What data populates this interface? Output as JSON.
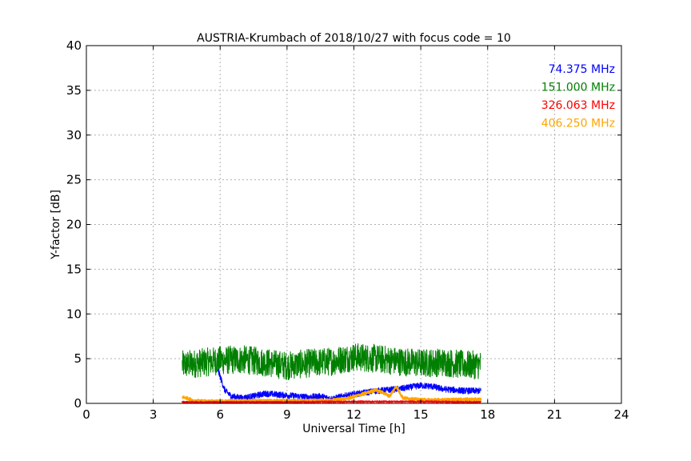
{
  "chart_data": {
    "type": "line",
    "title": "AUSTRIA-Krumbach of 2018/10/27 with focus code = 10",
    "xlabel": "Universal Time [h]",
    "ylabel": "Y-factor [dB]",
    "xlim": [
      0,
      24
    ],
    "ylim": [
      0,
      40
    ],
    "xticks": [
      "0",
      "3",
      "6",
      "9",
      "12",
      "15",
      "18",
      "21",
      "24"
    ],
    "yticks": [
      "0",
      "5",
      "10",
      "15",
      "20",
      "25",
      "30",
      "35",
      "40"
    ],
    "grid": true,
    "legend_position": "top-right",
    "series": [
      {
        "name": "74.375 MHz",
        "color": "#0000ff",
        "x": [
          5.9,
          6.0,
          6.2,
          6.5,
          7.0,
          7.5,
          8.0,
          8.5,
          9.0,
          9.5,
          10.0,
          10.5,
          11.0,
          11.5,
          12.0,
          12.5,
          13.0,
          13.5,
          14.0,
          14.5,
          15.0,
          15.5,
          16.0,
          16.5,
          17.0,
          17.7
        ],
        "y": [
          3.7,
          3.0,
          1.5,
          0.8,
          0.6,
          0.8,
          1.1,
          1.0,
          0.9,
          0.8,
          0.7,
          0.8,
          0.5,
          0.8,
          1.0,
          1.2,
          1.4,
          1.5,
          1.6,
          1.8,
          2.0,
          1.9,
          1.6,
          1.5,
          1.4,
          1.4
        ],
        "noise": 0.35
      },
      {
        "name": "151.000 MHz",
        "color": "#008000",
        "x": [
          4.3,
          5.0,
          6.0,
          7.0,
          8.0,
          9.0,
          10.0,
          11.0,
          12.0,
          13.0,
          14.0,
          15.0,
          16.0,
          17.0,
          17.7
        ],
        "y": [
          4.3,
          4.5,
          4.8,
          4.9,
          4.6,
          4.2,
          4.5,
          4.7,
          5.2,
          5.0,
          4.7,
          4.5,
          4.6,
          4.3,
          4.3
        ],
        "noise": 1.6
      },
      {
        "name": "326.063 MHz",
        "color": "#ff0000",
        "x": [
          4.3,
          6.0,
          9.0,
          12.0,
          15.0,
          17.7
        ],
        "y": [
          0.15,
          0.15,
          0.15,
          0.2,
          0.2,
          0.15
        ],
        "noise": 0.08
      },
      {
        "name": "406.250 MHz",
        "color": "#ffa500",
        "x": [
          4.3,
          4.5,
          4.8,
          5.2,
          6.0,
          7.0,
          8.0,
          9.0,
          10.0,
          11.0,
          11.8,
          12.2,
          12.6,
          13.0,
          13.3,
          13.6,
          13.9,
          14.2,
          15.0,
          16.0,
          17.0,
          17.7
        ],
        "y": [
          0.7,
          0.6,
          0.3,
          0.25,
          0.25,
          0.3,
          0.3,
          0.3,
          0.3,
          0.35,
          0.6,
          0.9,
          1.2,
          1.5,
          1.2,
          0.8,
          1.9,
          0.6,
          0.4,
          0.4,
          0.45,
          0.45
        ],
        "noise": 0.15
      }
    ]
  }
}
